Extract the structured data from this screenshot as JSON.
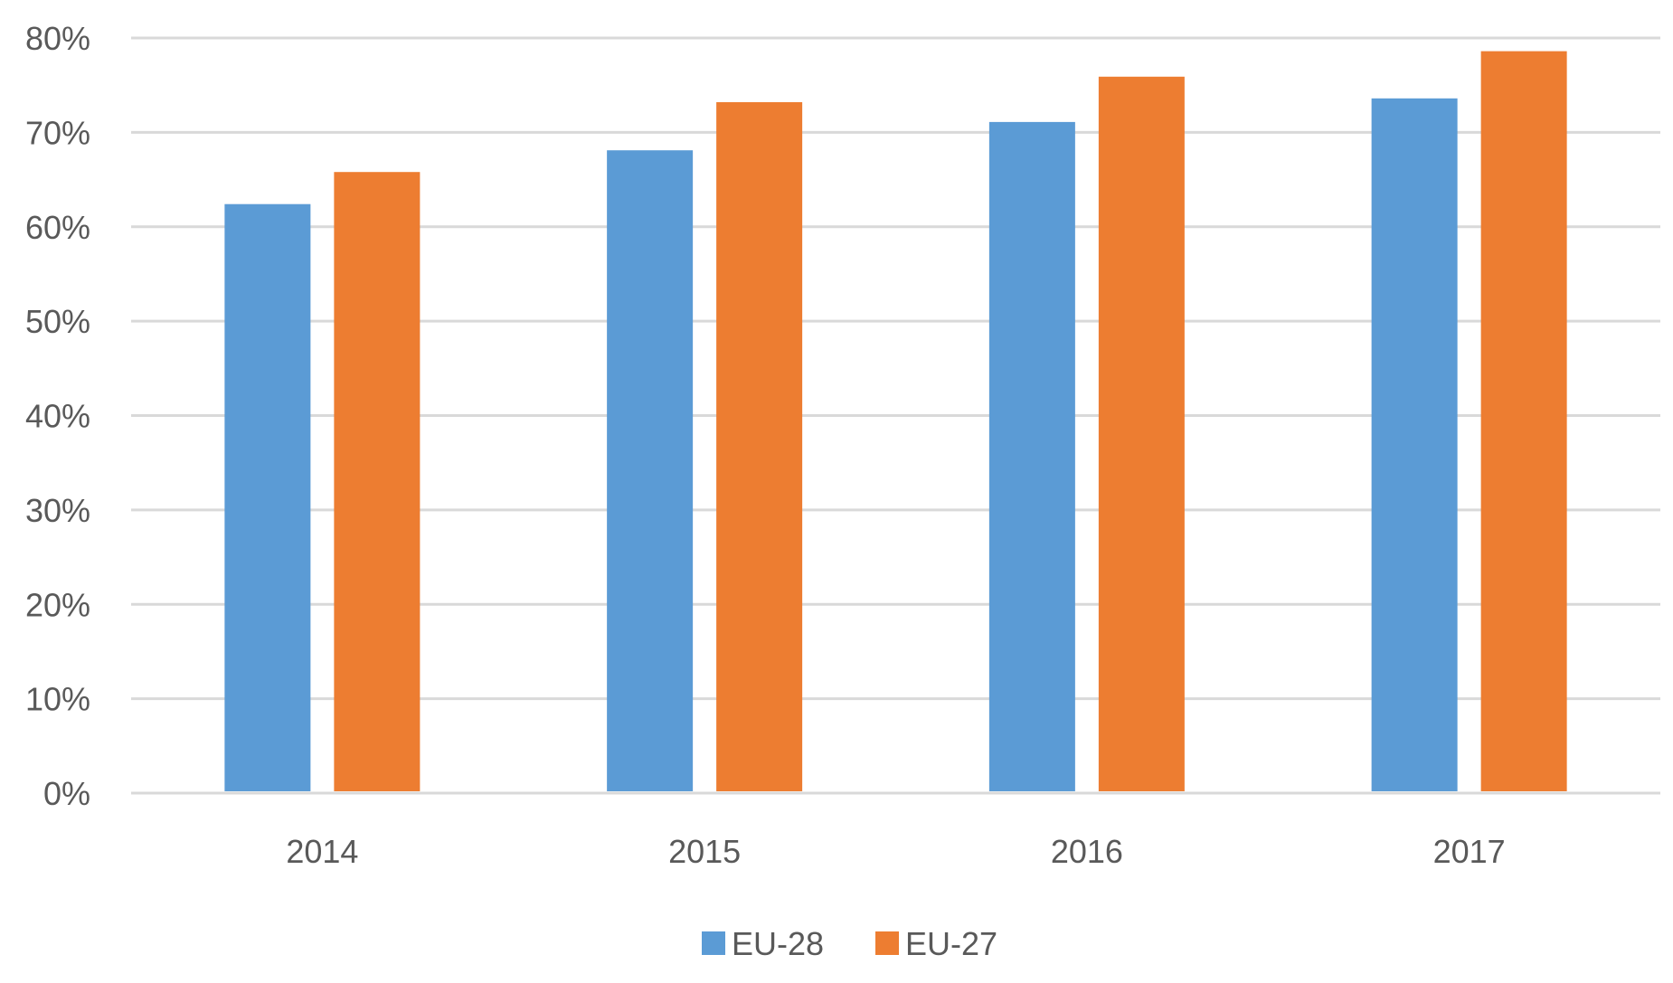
{
  "chart_data": {
    "type": "bar",
    "categories": [
      "2014",
      "2015",
      "2016",
      "2017"
    ],
    "series": [
      {
        "name": "EU-28",
        "values": [
          62.4,
          68.1,
          71.1,
          73.6
        ],
        "color": "#5B9BD5"
      },
      {
        "name": "EU-27",
        "values": [
          65.8,
          73.2,
          75.9,
          78.6
        ],
        "color": "#ED7D31"
      }
    ],
    "ylim": [
      0,
      80
    ],
    "yticks": [
      "0%",
      "10%",
      "20%",
      "30%",
      "40%",
      "50%",
      "60%",
      "70%",
      "80%"
    ],
    "grid": true,
    "legend": "bottom",
    "gridColor": "#D9D9D9"
  }
}
